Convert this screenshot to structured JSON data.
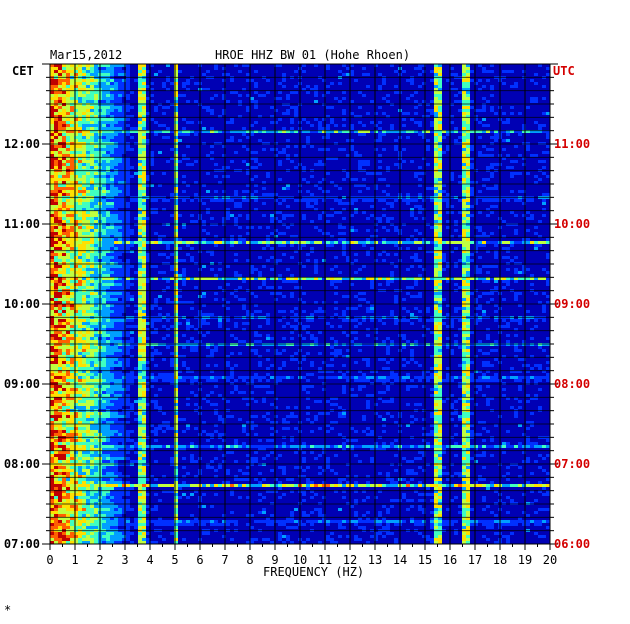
{
  "header": {
    "date": "Mar15,2012",
    "station": "HROE HHZ BW 01 (Hohe Rhoen)",
    "left_tz": "CET",
    "right_tz": "UTC"
  },
  "chart_data": {
    "type": "heatmap",
    "title": "HROE HHZ BW 01 (Hohe Rhoen)",
    "date": "Mar15,2012",
    "xlabel": "FREQUENCY (HZ)",
    "x_ticks": [
      0,
      1,
      2,
      3,
      4,
      5,
      6,
      7,
      8,
      9,
      10,
      11,
      12,
      13,
      14,
      15,
      16,
      17,
      18,
      19,
      20
    ],
    "xlim": [
      0,
      20
    ],
    "y_left_label": "CET",
    "y_right_label": "UTC",
    "y_left_ticks": [
      "07:00",
      "08:00",
      "09:00",
      "10:00",
      "11:00",
      "12:00"
    ],
    "y_right_ticks": [
      "06:00",
      "07:00",
      "08:00",
      "09:00",
      "10:00",
      "11:00"
    ],
    "ylim_cet_hours": [
      7.0,
      13.0
    ],
    "colormap": [
      "#0000b4",
      "#0030ff",
      "#00a0ff",
      "#40ffc0",
      "#c0ff40",
      "#ffe000",
      "#ff6000",
      "#c00000"
    ],
    "persistent_lines_hz": [
      3.7,
      5.0,
      15.5,
      16.6
    ],
    "broadband_events_cet": [
      "07:17",
      "07:45",
      "08:15",
      "09:05",
      "09:30",
      "09:50",
      "10:20",
      "10:47",
      "11:20",
      "12:10"
    ],
    "grid": true
  },
  "footer": {
    "mark": "*"
  }
}
